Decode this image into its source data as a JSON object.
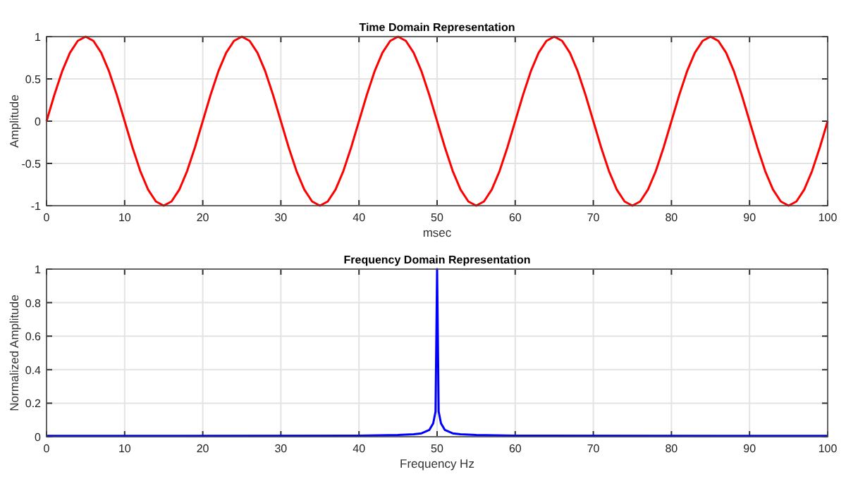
{
  "chart_data": [
    {
      "type": "line",
      "title": "Time Domain Representation",
      "xlabel": "msec",
      "ylabel": "Amplitude",
      "x": [
        0,
        1,
        2,
        3,
        4,
        5,
        6,
        7,
        8,
        9,
        10,
        11,
        12,
        13,
        14,
        15,
        16,
        17,
        18,
        19,
        20,
        21,
        22,
        23,
        24,
        25,
        26,
        27,
        28,
        29,
        30,
        31,
        32,
        33,
        34,
        35,
        36,
        37,
        38,
        39,
        40,
        41,
        42,
        43,
        44,
        45,
        46,
        47,
        48,
        49,
        50,
        51,
        52,
        53,
        54,
        55,
        56,
        57,
        58,
        59,
        60,
        61,
        62,
        63,
        64,
        65,
        66,
        67,
        68,
        69,
        70,
        71,
        72,
        73,
        74,
        75,
        76,
        77,
        78,
        79,
        80,
        81,
        82,
        83,
        84,
        85,
        86,
        87,
        88,
        89,
        90,
        91,
        92,
        93,
        94,
        95,
        96,
        97,
        98,
        99,
        100
      ],
      "series": [
        {
          "color": "#ff0000",
          "values": [
            0,
            0.31,
            0.59,
            0.81,
            0.95,
            1,
            0.95,
            0.81,
            0.59,
            0.31,
            0,
            -0.31,
            -0.59,
            -0.81,
            -0.95,
            -1,
            -0.95,
            -0.81,
            -0.59,
            -0.31,
            0,
            0.31,
            0.59,
            0.81,
            0.95,
            1,
            0.95,
            0.81,
            0.59,
            0.31,
            0,
            -0.31,
            -0.59,
            -0.81,
            -0.95,
            -1,
            -0.95,
            -0.81,
            -0.59,
            -0.31,
            0,
            0.31,
            0.59,
            0.81,
            0.95,
            1,
            0.95,
            0.81,
            0.59,
            0.31,
            0,
            -0.31,
            -0.59,
            -0.81,
            -0.95,
            -1,
            -0.95,
            -0.81,
            -0.59,
            -0.31,
            0,
            0.31,
            0.59,
            0.81,
            0.95,
            1,
            0.95,
            0.81,
            0.59,
            0.31,
            0,
            -0.31,
            -0.59,
            -0.81,
            -0.95,
            -1,
            -0.95,
            -0.81,
            -0.59,
            -0.31,
            0,
            0.31,
            0.59,
            0.81,
            0.95,
            1,
            0.95,
            0.81,
            0.59,
            0.31,
            0,
            -0.31,
            -0.59,
            -0.81,
            -0.95,
            -1,
            -0.95,
            -0.81,
            -0.59,
            -0.31,
            0
          ]
        }
      ],
      "xlim": [
        0,
        100
      ],
      "xticks": [
        0,
        10,
        20,
        30,
        40,
        50,
        60,
        70,
        80,
        90,
        100
      ],
      "ylim": [
        -1,
        1
      ],
      "yticks": [
        -1,
        -0.5,
        0,
        0.5,
        1
      ],
      "grid": true
    },
    {
      "type": "line",
      "title": "Frequency Domain Representation",
      "xlabel": "Frequency Hz",
      "ylabel": "Normalized Amplitude",
      "x": [
        0,
        40,
        45,
        47,
        48,
        49,
        49.5,
        49.8,
        50,
        50.2,
        50.5,
        51,
        52,
        53,
        55,
        60,
        100
      ],
      "series": [
        {
          "color": "#0000ff",
          "values": [
            0.005,
            0.006,
            0.01,
            0.015,
            0.02,
            0.04,
            0.08,
            0.15,
            1,
            0.15,
            0.08,
            0.04,
            0.02,
            0.015,
            0.01,
            0.006,
            0.005
          ]
        }
      ],
      "xlim": [
        0,
        100
      ],
      "xticks": [
        0,
        10,
        20,
        30,
        40,
        50,
        60,
        70,
        80,
        90,
        100
      ],
      "ylim": [
        0,
        1
      ],
      "yticks": [
        0,
        0.2,
        0.4,
        0.6,
        0.8,
        1
      ],
      "grid": true
    }
  ]
}
